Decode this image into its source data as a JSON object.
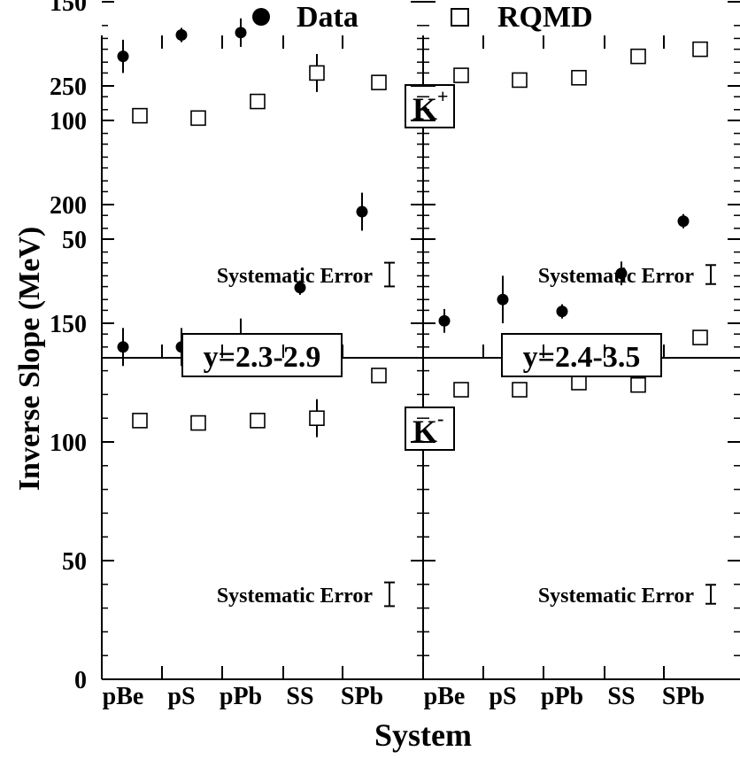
{
  "figure": {
    "legend": [
      {
        "label": "Data",
        "marker": "filled-circle"
      },
      {
        "label": "RQMD",
        "marker": "open-square"
      }
    ],
    "ylabel": "Inverse Slope (MeV)",
    "xlabel": "System",
    "systematic_error_label": "Systematic Error",
    "ytick_labels": [
      "0",
      "50",
      "100",
      "150",
      "200",
      "250"
    ]
  },
  "chart_data": [
    {
      "type": "scatter",
      "panel": "top-left",
      "particle_label": "K",
      "particle_charge": "+",
      "rapidity_label": "",
      "categories": [
        "pBe",
        "pS",
        "pPb",
        "SS",
        "SPb"
      ],
      "ylim": [
        0,
        270
      ],
      "systematic_error": 10,
      "series": [
        {
          "name": "Data",
          "values": [
            127,
            136,
            137,
            173,
            193
          ],
          "errors": [
            7,
            3,
            6,
            6,
            8
          ],
          "marker": "filled-circle"
        },
        {
          "name": "RQMD",
          "values": [
            102,
            101,
            108,
            120,
            116
          ],
          "errors": [
            0,
            0,
            0,
            8,
            0
          ],
          "marker": "open-square"
        }
      ]
    },
    {
      "type": "scatter",
      "panel": "top-right",
      "particle_label": "",
      "particle_charge": "",
      "rapidity_label": "",
      "categories": [
        "pBe",
        "pS",
        "pPb",
        "SS",
        "SPb"
      ],
      "ylim": [
        0,
        270
      ],
      "systematic_error": 8,
      "series": [
        {
          "name": "Data",
          "values": [
            160,
            163,
            185,
            157,
            192
          ],
          "errors": [
            6,
            12,
            6,
            3,
            8
          ],
          "marker": "filled-circle"
        },
        {
          "name": "RQMD",
          "values": [
            119,
            117,
            118,
            127,
            130
          ],
          "errors": [
            0,
            0,
            0,
            0,
            0
          ],
          "marker": "open-square"
        }
      ]
    },
    {
      "type": "scatter",
      "panel": "bottom-left",
      "particle_label": "K",
      "particle_charge": "-",
      "rapidity_label": "y=2.3-2.9",
      "categories": [
        "pBe",
        "pS",
        "pPb",
        "SS",
        "SPb"
      ],
      "ylim": [
        0,
        270
      ],
      "systematic_error": 10,
      "series": [
        {
          "name": "Data",
          "values": [
            140,
            140,
            142,
            165,
            197
          ],
          "errors": [
            8,
            8,
            10,
            3,
            8
          ],
          "marker": "filled-circle"
        },
        {
          "name": "RQMD",
          "values": [
            109,
            108,
            109,
            110,
            128
          ],
          "errors": [
            0,
            0,
            0,
            8,
            0
          ],
          "marker": "open-square"
        }
      ]
    },
    {
      "type": "scatter",
      "panel": "bottom-right",
      "particle_label": "",
      "particle_charge": "",
      "rapidity_label": "y=2.4-3.5",
      "categories": [
        "pBe",
        "pS",
        "pPb",
        "SS",
        "SPb"
      ],
      "ylim": [
        0,
        270
      ],
      "systematic_error": 8,
      "series": [
        {
          "name": "Data",
          "values": [
            151,
            160,
            155,
            171,
            193
          ],
          "errors": [
            5,
            10,
            3,
            5,
            3
          ],
          "marker": "filled-circle"
        },
        {
          "name": "RQMD",
          "values": [
            122,
            122,
            125,
            124,
            144
          ],
          "errors": [
            0,
            0,
            0,
            0,
            0
          ],
          "marker": "open-square"
        }
      ]
    }
  ]
}
